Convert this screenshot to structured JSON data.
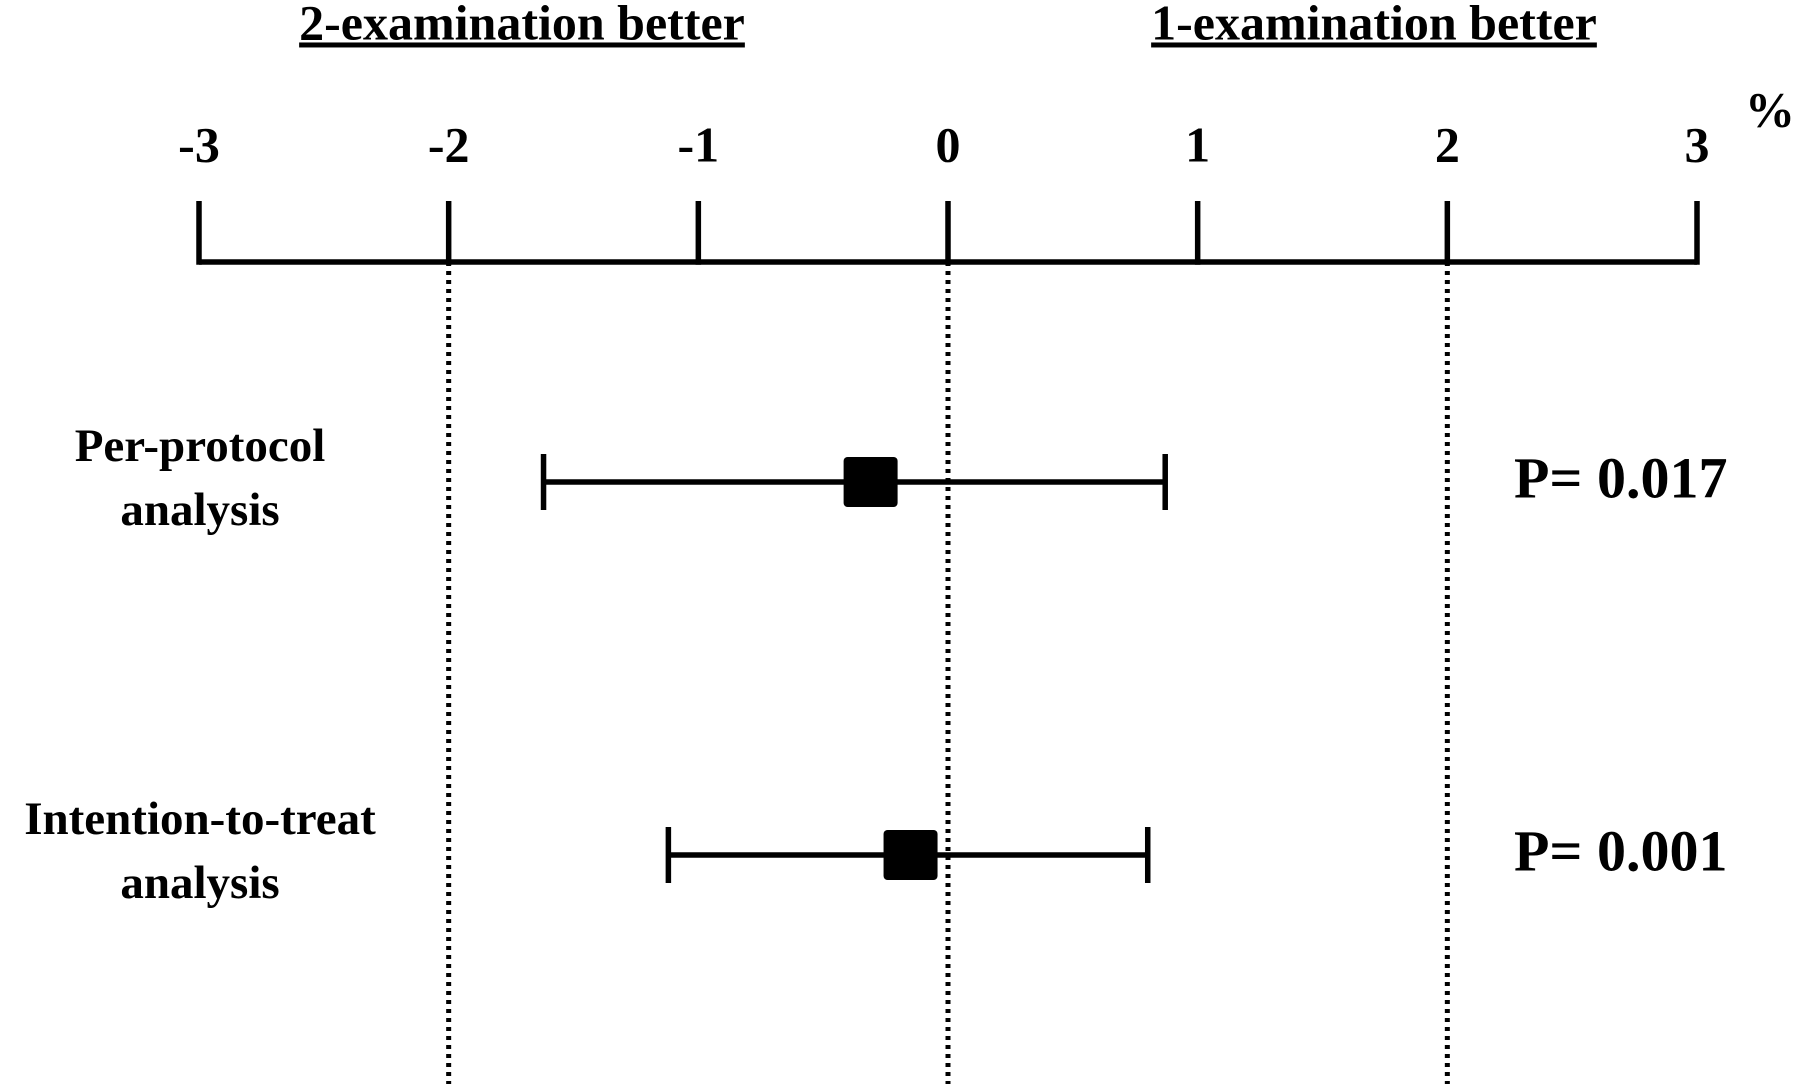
{
  "chart_data": {
    "type": "forest",
    "headers": {
      "left": "2-examination better",
      "right": "1-examination better"
    },
    "unit_label": "%",
    "categories": [
      [
        "Per-protocol",
        "analysis"
      ],
      [
        "Intention-to-treat",
        "analysis"
      ]
    ],
    "values": [
      -0.31,
      -0.15
    ],
    "lower": [
      -1.62,
      -1.12
    ],
    "upper": [
      0.87,
      0.8
    ],
    "p_labels": [
      "P= 0.017",
      "P= 0.001"
    ],
    "xlim": [
      -3,
      3
    ],
    "xticks": [
      -3,
      -2,
      -1,
      0,
      1,
      2,
      3
    ],
    "reference_lines": [
      -2,
      0,
      2
    ],
    "color": "#000000"
  }
}
